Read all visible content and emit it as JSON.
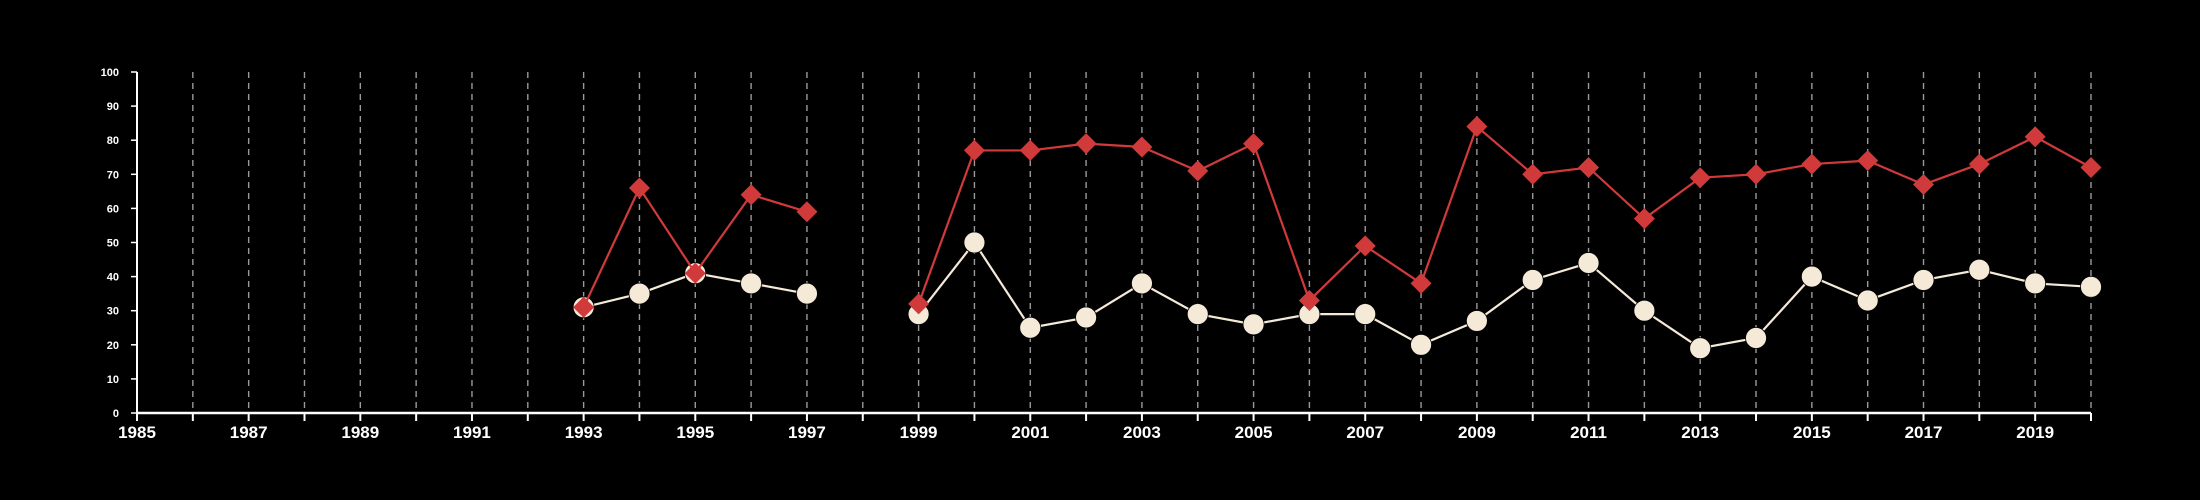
{
  "chart_data": {
    "type": "line",
    "title": "",
    "xlabel": "",
    "ylabel": "",
    "xlim": [
      1985,
      2020
    ],
    "ylim": [
      0,
      100
    ],
    "y_ticks": [
      0,
      10,
      20,
      30,
      40,
      50,
      60,
      70,
      80,
      90,
      100
    ],
    "x_tick_labels": [
      1985,
      1987,
      1989,
      1991,
      1993,
      1995,
      1997,
      1999,
      2001,
      2003,
      2005,
      2007,
      2009,
      2011,
      2013,
      2015,
      2017,
      2019
    ],
    "grid": "vertical dashed lines at every year",
    "colors": {
      "background": "#000000",
      "axis": "#ffffff",
      "grid": "#9a9a9a"
    },
    "series": [
      {
        "marker": "diamond",
        "color": "#d13a3a",
        "x": [
          1993,
          1994,
          1995,
          1996,
          1997,
          1999,
          2000,
          2001,
          2002,
          2003,
          2004,
          2005,
          2006,
          2007,
          2008,
          2009,
          2010,
          2011,
          2012,
          2013,
          2014,
          2015,
          2016,
          2017,
          2018,
          2019,
          2020
        ],
        "y": [
          31,
          66,
          41,
          64,
          59,
          32,
          77,
          77,
          79,
          78,
          71,
          79,
          33,
          49,
          38,
          84,
          70,
          72,
          57,
          69,
          70,
          73,
          74,
          67,
          73,
          81,
          72
        ]
      },
      {
        "marker": "circle",
        "color": "#f5ead8",
        "x": [
          1993,
          1994,
          1995,
          1996,
          1997,
          1999,
          2000,
          2001,
          2002,
          2003,
          2004,
          2005,
          2006,
          2007,
          2008,
          2009,
          2010,
          2011,
          2012,
          2013,
          2014,
          2015,
          2016,
          2017,
          2018,
          2019,
          2020
        ],
        "y": [
          31,
          35,
          41,
          38,
          35,
          29,
          50,
          25,
          28,
          38,
          29,
          26,
          29,
          29,
          20,
          27,
          39,
          44,
          30,
          19,
          22,
          40,
          33,
          39,
          42,
          38,
          37
        ]
      }
    ]
  }
}
